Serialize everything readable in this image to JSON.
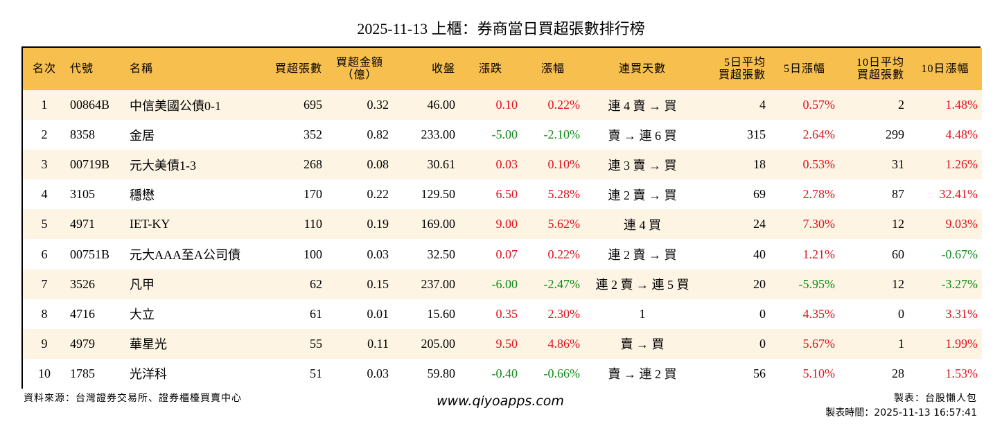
{
  "title": "2025-11-13 上櫃：券商當日買超張數排行榜",
  "table": {
    "headers": [
      {
        "line1": "名次",
        "line2": ""
      },
      {
        "line1": "代號",
        "line2": ""
      },
      {
        "line1": "名稱",
        "line2": ""
      },
      {
        "line1": "買超張數",
        "line2": ""
      },
      {
        "line1": "買超金額",
        "line2": "（億）"
      },
      {
        "line1": "收盤",
        "line2": ""
      },
      {
        "line1": "漲跌",
        "line2": ""
      },
      {
        "line1": "漲幅",
        "line2": ""
      },
      {
        "line1": "連買天數",
        "line2": ""
      },
      {
        "line1": "5日平均",
        "line2": "買超張數"
      },
      {
        "line1": "5日漲幅",
        "line2": ""
      },
      {
        "line1": "10日平均",
        "line2": "買超張數"
      },
      {
        "line1": "10日漲幅",
        "line2": ""
      }
    ],
    "rows": [
      {
        "rank": "1",
        "code": "00864B",
        "name": "中信美國公債0-1",
        "net_buy_lots": "695",
        "net_buy_amount": "0.32",
        "close": "46.00",
        "change": "0.10",
        "change_pct": "0.22%",
        "streak": "連 4 賣 → 買",
        "avg5_lots": "4",
        "pct5": "0.57%",
        "avg10_lots": "2",
        "pct10": "1.48%"
      },
      {
        "rank": "2",
        "code": "8358",
        "name": "金居",
        "net_buy_lots": "352",
        "net_buy_amount": "0.82",
        "close": "233.00",
        "change": "-5.00",
        "change_pct": "-2.10%",
        "streak": "賣 → 連 6 買",
        "avg5_lots": "315",
        "pct5": "2.64%",
        "avg10_lots": "299",
        "pct10": "4.48%"
      },
      {
        "rank": "3",
        "code": "00719B",
        "name": "元大美債1-3",
        "net_buy_lots": "268",
        "net_buy_amount": "0.08",
        "close": "30.61",
        "change": "0.03",
        "change_pct": "0.10%",
        "streak": "連 3 賣 → 買",
        "avg5_lots": "18",
        "pct5": "0.53%",
        "avg10_lots": "31",
        "pct10": "1.26%"
      },
      {
        "rank": "4",
        "code": "3105",
        "name": "穩懋",
        "net_buy_lots": "170",
        "net_buy_amount": "0.22",
        "close": "129.50",
        "change": "6.50",
        "change_pct": "5.28%",
        "streak": "連 2 賣 → 買",
        "avg5_lots": "69",
        "pct5": "2.78%",
        "avg10_lots": "87",
        "pct10": "32.41%"
      },
      {
        "rank": "5",
        "code": "4971",
        "name": "IET-KY",
        "net_buy_lots": "110",
        "net_buy_amount": "0.19",
        "close": "169.00",
        "change": "9.00",
        "change_pct": "5.62%",
        "streak": "連 4 買",
        "avg5_lots": "24",
        "pct5": "7.30%",
        "avg10_lots": "12",
        "pct10": "9.03%"
      },
      {
        "rank": "6",
        "code": "00751B",
        "name": "元大AAA至A公司債",
        "net_buy_lots": "100",
        "net_buy_amount": "0.03",
        "close": "32.50",
        "change": "0.07",
        "change_pct": "0.22%",
        "streak": "連 2 賣 → 買",
        "avg5_lots": "40",
        "pct5": "1.21%",
        "avg10_lots": "60",
        "pct10": "-0.67%"
      },
      {
        "rank": "7",
        "code": "3526",
        "name": "凡甲",
        "net_buy_lots": "62",
        "net_buy_amount": "0.15",
        "close": "237.00",
        "change": "-6.00",
        "change_pct": "-2.47%",
        "streak": "連 2 賣 → 連 5 買",
        "avg5_lots": "20",
        "pct5": "-5.95%",
        "avg10_lots": "12",
        "pct10": "-3.27%"
      },
      {
        "rank": "8",
        "code": "4716",
        "name": "大立",
        "net_buy_lots": "61",
        "net_buy_amount": "0.01",
        "close": "15.60",
        "change": "0.35",
        "change_pct": "2.30%",
        "streak": "1",
        "avg5_lots": "0",
        "pct5": "4.35%",
        "avg10_lots": "0",
        "pct10": "3.31%"
      },
      {
        "rank": "9",
        "code": "4979",
        "name": "華星光",
        "net_buy_lots": "55",
        "net_buy_amount": "0.11",
        "close": "205.00",
        "change": "9.50",
        "change_pct": "4.86%",
        "streak": "賣 → 買",
        "avg5_lots": "0",
        "pct5": "5.67%",
        "avg10_lots": "1",
        "pct10": "1.99%"
      },
      {
        "rank": "10",
        "code": "1785",
        "name": "光洋科",
        "net_buy_lots": "51",
        "net_buy_amount": "0.03",
        "close": "59.80",
        "change": "-0.40",
        "change_pct": "-0.66%",
        "streak": "賣 → 連 2 買",
        "avg5_lots": "56",
        "pct5": "5.10%",
        "avg10_lots": "28",
        "pct10": "1.53%"
      }
    ]
  },
  "colors": {
    "header_bg": "#f7bf4e",
    "row_alt_bg": "#fdf4e3",
    "up": "#e0101c",
    "down": "#0c8a16"
  },
  "footer": {
    "source": "資料來源：台灣證券交易所、證券櫃檯買賣中心",
    "website": "www.qiyoapps.com",
    "maker": "製表：台股懶人包",
    "made_time": "製表時間：2025-11-13 16:57:41"
  }
}
